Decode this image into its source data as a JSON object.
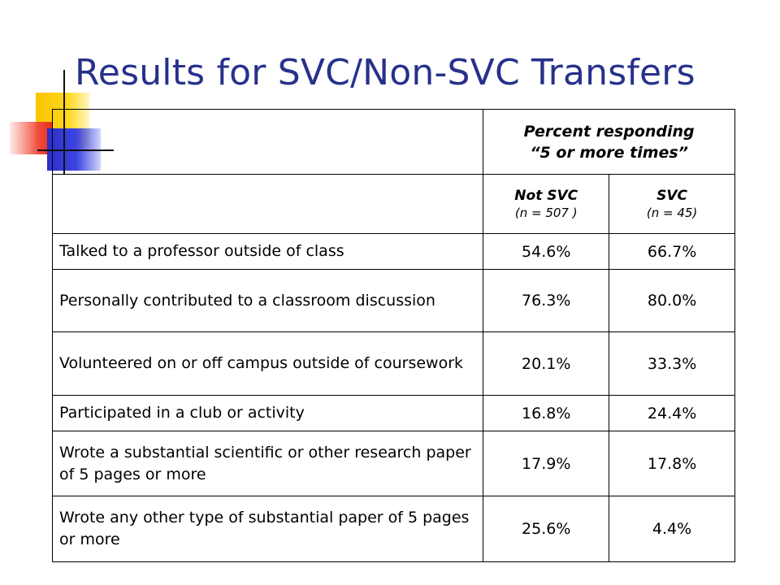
{
  "title": "Results for SVC/Non-SVC Transfers",
  "table": {
    "header": {
      "group_label_line1": "Percent responding",
      "group_label_line2": "“5 or more times”",
      "col1_name": "Not SVC",
      "col1_n": "(n = 507 )",
      "col2_name": "SVC",
      "col2_n": "(n = 45)"
    },
    "rows": [
      {
        "label": "Talked to a professor outside of class",
        "not_svc": "54.6%",
        "svc": "66.7%"
      },
      {
        "label": "Personally contributed to a classroom discussion",
        "not_svc": "76.3%",
        "svc": "80.0%"
      },
      {
        "label": "Volunteered on or off campus outside of coursework",
        "not_svc": "20.1%",
        "svc": "33.3%"
      },
      {
        "label": "Participated in a club or activity",
        "not_svc": "16.8%",
        "svc": "24.4%"
      },
      {
        "label": "Wrote a substantial scientific or other research paper of 5 pages or more",
        "not_svc": "17.9%",
        "svc": "17.8%"
      },
      {
        "label": "Wrote any other type of substantial paper of 5 pages or more",
        "not_svc": "25.6%",
        "svc": "4.4%"
      }
    ]
  },
  "colors": {
    "title": "#27318b",
    "deco_yellow": "#f7c400",
    "deco_blue": "#2a2fc8",
    "deco_red": "#f04a3a"
  }
}
